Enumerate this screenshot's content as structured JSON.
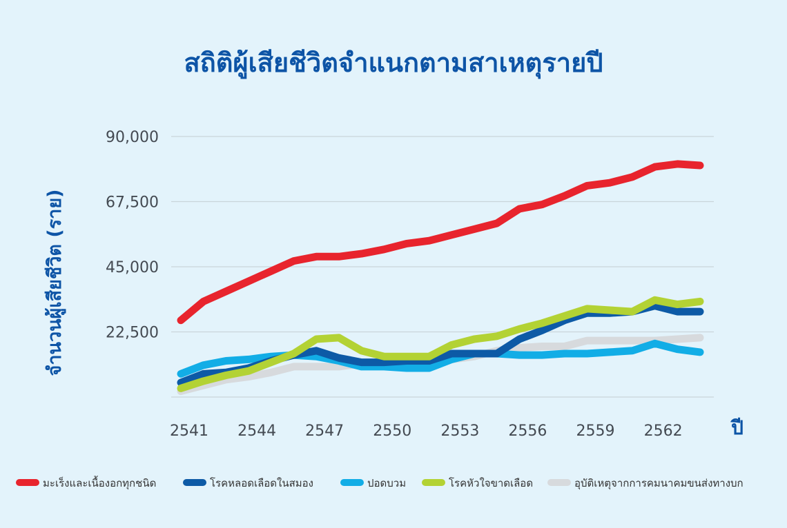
{
  "chart_data": {
    "type": "line",
    "title": "สถิติผู้เสียชีวิตจำแนกตามสาเหตุรายปี",
    "xlabel": "ปี",
    "ylabel": "จำนวนผู้เสียชีวิต (ราย)",
    "ylim": [
      0,
      90000
    ],
    "yticks": [
      22500,
      45000,
      67500,
      90000
    ],
    "ytick_labels": [
      "22,500",
      "45,000",
      "67,500",
      "90,000"
    ],
    "xticks": [
      2541,
      2544,
      2547,
      2550,
      2553,
      2556,
      2559,
      2562
    ],
    "xlim": [
      2541,
      2564
    ],
    "grid": true,
    "legend_position": "bottom",
    "x": [
      2541,
      2542,
      2543,
      2544,
      2545,
      2546,
      2547,
      2548,
      2549,
      2550,
      2551,
      2552,
      2553,
      2554,
      2555,
      2556,
      2557,
      2558,
      2559,
      2560,
      2561,
      2562,
      2563,
      2564
    ],
    "series": [
      {
        "name": "มะเร็งและเนื้องอกทุกชนิด",
        "color": "#e8242d",
        "values": [
          26500,
          33000,
          36500,
          40000,
          43500,
          47000,
          48500,
          48500,
          49500,
          51000,
          53000,
          54000,
          56000,
          58000,
          60000,
          65000,
          66500,
          69500,
          73000,
          74000,
          76000,
          79500,
          80500,
          80000
        ]
      },
      {
        "name": "โรคหลอดเลือดในสมอง",
        "color": "#0d5aa6",
        "values": [
          5000,
          8000,
          8500,
          10000,
          12500,
          14500,
          16000,
          13500,
          12000,
          12000,
          12500,
          12500,
          15000,
          15000,
          15000,
          20000,
          23000,
          26500,
          29000,
          29000,
          29500,
          31500,
          29500,
          29500
        ]
      },
      {
        "name": "ปอดบวม",
        "color": "#12ade6",
        "values": [
          8000,
          11000,
          12500,
          13000,
          14000,
          14500,
          14000,
          12500,
          10500,
          10500,
          10000,
          10000,
          13000,
          15000,
          15000,
          14500,
          14500,
          15000,
          15000,
          15500,
          16000,
          18500,
          16500,
          15500
        ]
      },
      {
        "name": "โรคหัวใจขาดเลือด",
        "color": "#b3d234",
        "values": [
          3000,
          5500,
          7500,
          9000,
          12000,
          15000,
          20000,
          20500,
          16000,
          14000,
          14000,
          14000,
          18000,
          20000,
          21000,
          23500,
          25500,
          28000,
          30500,
          30000,
          29500,
          33500,
          32000,
          33000
        ]
      },
      {
        "name": "อุบัติเหตุจากการคมนาคมขนส่งทางบก",
        "color": "#d7dadd",
        "values": [
          2000,
          4000,
          6000,
          7000,
          8500,
          10500,
          10500,
          10500,
          11500,
          11500,
          12000,
          12500,
          13000,
          14000,
          16000,
          17000,
          17500,
          17500,
          19500,
          19500,
          19500,
          19500,
          20000,
          20500
        ]
      }
    ]
  }
}
